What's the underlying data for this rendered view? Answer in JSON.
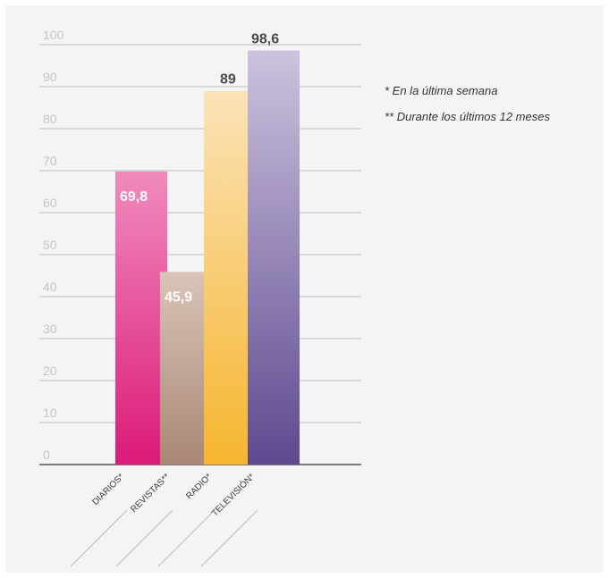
{
  "chart_data": {
    "type": "bar",
    "categories": [
      "DIARIOS*",
      "REVISTAS**",
      "RADIO*",
      "TELEVISIÓN*"
    ],
    "values": [
      69.8,
      45.9,
      89,
      98.6
    ],
    "value_labels": [
      "69,8",
      "45,9",
      "89",
      "98,6"
    ],
    "yticks": [
      "0",
      "10",
      "20",
      "30",
      "40",
      "50",
      "60",
      "70",
      "80",
      "90",
      "100"
    ],
    "ylim": [
      0,
      100
    ],
    "grid": true,
    "colors": [
      [
        "#f08bbd",
        "#dc1a79"
      ],
      [
        "#d9c4b7",
        "#a98875"
      ],
      [
        "#fbe3b8",
        "#f6b52e"
      ],
      [
        "#cdc2de",
        "#5d4a8f"
      ]
    ],
    "label_colors": [
      "#ffffff",
      "#ffffff",
      "#4a4a4a",
      "#4a4a4a"
    ],
    "footnotes": [
      "* En la última semana",
      "** Durante los últimos 12 meses"
    ]
  }
}
